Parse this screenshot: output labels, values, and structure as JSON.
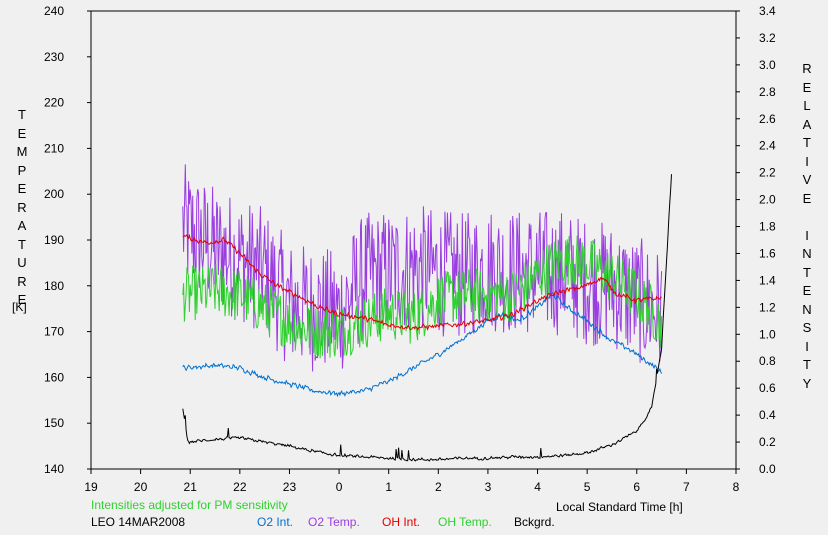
{
  "chart_data": {
    "type": "line",
    "left_axis": {
      "label": "TEMPERATURE",
      "unit": "[K]",
      "min": 140,
      "max": 240,
      "ticks": [
        140,
        150,
        160,
        170,
        180,
        190,
        200,
        210,
        220,
        230,
        240
      ]
    },
    "right_axis": {
      "label": "RELATIVE INTENSITY",
      "min": 0.0,
      "max": 3.4,
      "ticks": [
        "0.0",
        "0.2",
        "0.4",
        "0.6",
        "0.8",
        "1.0",
        "1.2",
        "1.4",
        "1.6",
        "1.8",
        "2.0",
        "2.2",
        "2.4",
        "2.6",
        "2.8",
        "3.0",
        "3.2",
        "3.4"
      ]
    },
    "x_axis": {
      "label": "Local Standard Time [h]",
      "ticks": [
        "19",
        "20",
        "21",
        "22",
        "23",
        "0",
        "1",
        "2",
        "3",
        "4",
        "5",
        "6",
        "7",
        "8"
      ]
    },
    "grid": false,
    "series": [
      {
        "name": "O2 Int.",
        "axis": "right",
        "color": "#0070d0",
        "noise": 0.012,
        "points": [
          [
            20.85,
            0.75
          ],
          [
            21.5,
            0.77
          ],
          [
            22.0,
            0.75
          ],
          [
            22.5,
            0.68
          ],
          [
            23.0,
            0.63
          ],
          [
            23.5,
            0.58
          ],
          [
            24.0,
            0.56
          ],
          [
            24.5,
            0.58
          ],
          [
            25.0,
            0.65
          ],
          [
            25.5,
            0.75
          ],
          [
            26.0,
            0.85
          ],
          [
            26.5,
            0.97
          ],
          [
            27.0,
            1.1
          ],
          [
            27.3,
            1.15
          ],
          [
            27.6,
            1.1
          ],
          [
            28.0,
            1.2
          ],
          [
            28.3,
            1.3
          ],
          [
            28.6,
            1.2
          ],
          [
            29.0,
            1.1
          ],
          [
            29.5,
            0.95
          ],
          [
            29.8,
            0.9
          ],
          [
            30.2,
            0.8
          ],
          [
            30.5,
            0.72
          ]
        ]
      },
      {
        "name": "O2 Temp.",
        "axis": "left",
        "color": "#9a3ee0",
        "noise": 14,
        "points": [
          [
            20.85,
            193
          ],
          [
            21.5,
            188
          ],
          [
            22.0,
            186
          ],
          [
            22.5,
            183
          ],
          [
            23.0,
            176
          ],
          [
            23.5,
            175
          ],
          [
            24.0,
            174
          ],
          [
            24.5,
            182
          ],
          [
            25.0,
            183
          ],
          [
            25.5,
            184
          ],
          [
            26.0,
            183
          ],
          [
            26.5,
            182
          ],
          [
            27.0,
            184
          ],
          [
            27.5,
            183
          ],
          [
            28.0,
            183
          ],
          [
            28.5,
            183
          ],
          [
            29.0,
            181
          ],
          [
            29.5,
            180
          ],
          [
            30.0,
            177
          ],
          [
            30.5,
            174
          ]
        ]
      },
      {
        "name": "OH Int.",
        "axis": "right",
        "color": "#e00000",
        "noise": 0.012,
        "points": [
          [
            20.85,
            1.73
          ],
          [
            21.3,
            1.68
          ],
          [
            21.7,
            1.7
          ],
          [
            22.0,
            1.6
          ],
          [
            22.4,
            1.45
          ],
          [
            22.8,
            1.35
          ],
          [
            23.2,
            1.28
          ],
          [
            23.6,
            1.2
          ],
          [
            24.0,
            1.15
          ],
          [
            24.5,
            1.12
          ],
          [
            25.0,
            1.07
          ],
          [
            25.5,
            1.05
          ],
          [
            26.0,
            1.06
          ],
          [
            26.5,
            1.08
          ],
          [
            27.0,
            1.1
          ],
          [
            27.5,
            1.15
          ],
          [
            28.0,
            1.25
          ],
          [
            28.5,
            1.32
          ],
          [
            28.9,
            1.35
          ],
          [
            29.3,
            1.42
          ],
          [
            29.6,
            1.3
          ],
          [
            30.0,
            1.25
          ],
          [
            30.5,
            1.27
          ]
        ]
      },
      {
        "name": "OH Temp.",
        "axis": "left",
        "color": "#30d030",
        "noise": 6,
        "points": [
          [
            20.85,
            178
          ],
          [
            21.5,
            179
          ],
          [
            22.0,
            178
          ],
          [
            22.5,
            175
          ],
          [
            23.0,
            172
          ],
          [
            23.5,
            170
          ],
          [
            24.0,
            170
          ],
          [
            24.5,
            172
          ],
          [
            25.0,
            174
          ],
          [
            25.5,
            173
          ],
          [
            26.0,
            177
          ],
          [
            26.5,
            178
          ],
          [
            27.0,
            178
          ],
          [
            27.5,
            178
          ],
          [
            28.0,
            182
          ],
          [
            28.5,
            186
          ],
          [
            29.0,
            185
          ],
          [
            29.5,
            182
          ],
          [
            30.0,
            178
          ],
          [
            30.5,
            172
          ]
        ]
      },
      {
        "name": "Bckgrd.",
        "axis": "right",
        "color": "#000000",
        "noise": 0.007,
        "points": [
          [
            20.85,
            0.45
          ],
          [
            20.95,
            0.2
          ],
          [
            21.5,
            0.22
          ],
          [
            22.0,
            0.23
          ],
          [
            22.5,
            0.2
          ],
          [
            23.0,
            0.17
          ],
          [
            23.5,
            0.13
          ],
          [
            24.0,
            0.1
          ],
          [
            24.5,
            0.09
          ],
          [
            25.0,
            0.08
          ],
          [
            25.5,
            0.07
          ],
          [
            26.0,
            0.07
          ],
          [
            26.5,
            0.08
          ],
          [
            27.0,
            0.08
          ],
          [
            27.5,
            0.09
          ],
          [
            28.0,
            0.09
          ],
          [
            28.5,
            0.1
          ],
          [
            29.0,
            0.12
          ],
          [
            29.5,
            0.18
          ],
          [
            30.0,
            0.28
          ],
          [
            30.3,
            0.45
          ],
          [
            30.5,
            0.9
          ],
          [
            30.7,
            2.2
          ]
        ]
      }
    ]
  },
  "notes": {
    "pm_sensitivity": "Intensities adjusted for PM sensitivity",
    "station_date": "LEO 14MAR2008"
  }
}
